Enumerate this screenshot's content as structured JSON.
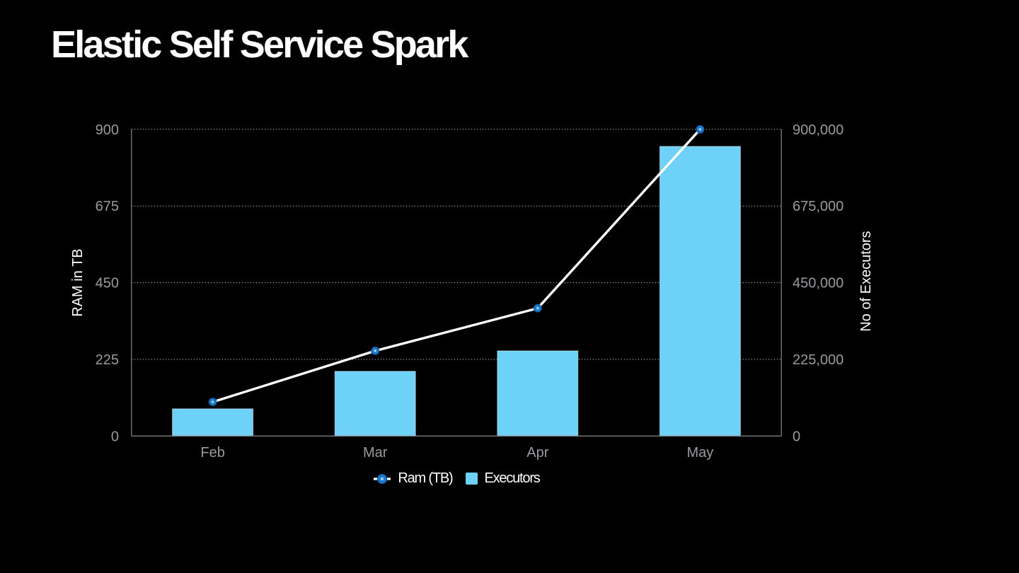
{
  "title": "Elastic Self Service Spark",
  "chart_data": {
    "type": "combo",
    "categories": [
      "Feb",
      "Mar",
      "Apr",
      "May"
    ],
    "series": [
      {
        "name": "Ram (TB)",
        "type": "line",
        "axis": "left",
        "values": [
          100,
          250,
          375,
          900
        ]
      },
      {
        "name": "Executors",
        "type": "bar",
        "axis": "right",
        "values": [
          80000,
          190000,
          250000,
          850000
        ]
      }
    ],
    "left_axis": {
      "label": "RAM in TB",
      "min": 0,
      "max": 900,
      "tick_values": [
        0,
        225,
        450,
        675,
        900
      ],
      "tick_labels": [
        "0",
        "225",
        "450",
        "675",
        "900"
      ]
    },
    "right_axis": {
      "label": "No of Executors",
      "min": 0,
      "max": 900000,
      "tick_values": [
        0,
        225000,
        450000,
        675000,
        900000
      ],
      "tick_labels": [
        "0",
        "225,000",
        "450,000",
        "675,000",
        "900,000"
      ]
    },
    "grid": "horizontal-dotted",
    "legend_position": "bottom-center"
  },
  "colors": {
    "background": "#000000",
    "title": "#ffffff",
    "bar_fill": "#6ed1f7",
    "bar_edge": "rgba(255,255,255,0.45)",
    "line": "#ffffff",
    "marker_fill": "#1b79c8",
    "marker_edge": "#0d5ca6",
    "marker_core": "#9fcdec",
    "axis_line": "#87888b",
    "tick_label": "#989a9e",
    "axis_title": "#ffffff",
    "gridline": "#cbccce"
  }
}
